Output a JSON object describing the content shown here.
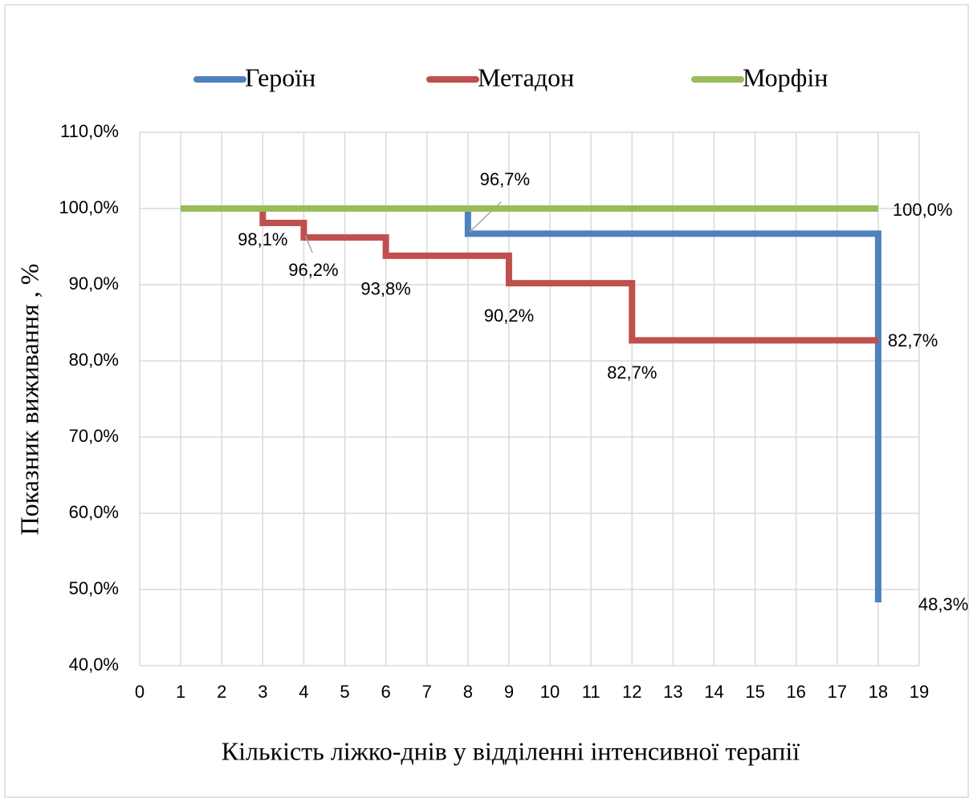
{
  "chart_data": {
    "type": "line",
    "step": "post",
    "x_label": "Кількість ліжко-днів у відділенні інтенсивної терапії",
    "y_label": "Показник виживання , %",
    "xlim": [
      0,
      19
    ],
    "xticks": [
      0,
      1,
      2,
      3,
      4,
      5,
      6,
      7,
      8,
      9,
      10,
      11,
      12,
      13,
      14,
      15,
      16,
      17,
      18,
      19
    ],
    "ylim": [
      40,
      110
    ],
    "yticks": [
      {
        "value": 40,
        "label": "40,0%"
      },
      {
        "value": 50,
        "label": "50,0%"
      },
      {
        "value": 60,
        "label": "60,0%"
      },
      {
        "value": 70,
        "label": "70,0%"
      },
      {
        "value": 80,
        "label": "80,0%"
      },
      {
        "value": 90,
        "label": "90,0%"
      },
      {
        "value": 100,
        "label": "100,0%"
      },
      {
        "value": 110,
        "label": "110,0%"
      }
    ],
    "grid": true,
    "legend": "top",
    "series": [
      {
        "name": "Героїн",
        "color": "#4f81bd",
        "x": [
          1,
          8,
          18
        ],
        "values": [
          100,
          96.7,
          48.3
        ],
        "value_labels": [
          null,
          "96,7%",
          "48,3%"
        ]
      },
      {
        "name": "Метадон",
        "color": "#c0504d",
        "x": [
          1,
          3,
          4,
          6,
          9,
          12,
          18
        ],
        "values": [
          100,
          98.1,
          96.2,
          93.8,
          90.2,
          82.7,
          82.7
        ],
        "value_labels": [
          null,
          "98,1%",
          "96,2%",
          "93,8%",
          "90,2%",
          "82,7%",
          "82,7%"
        ]
      },
      {
        "name": "Морфін",
        "color": "#9bbb59",
        "x": [
          1,
          18
        ],
        "values": [
          100,
          100
        ],
        "value_labels": [
          null,
          "100,0%"
        ]
      }
    ]
  }
}
